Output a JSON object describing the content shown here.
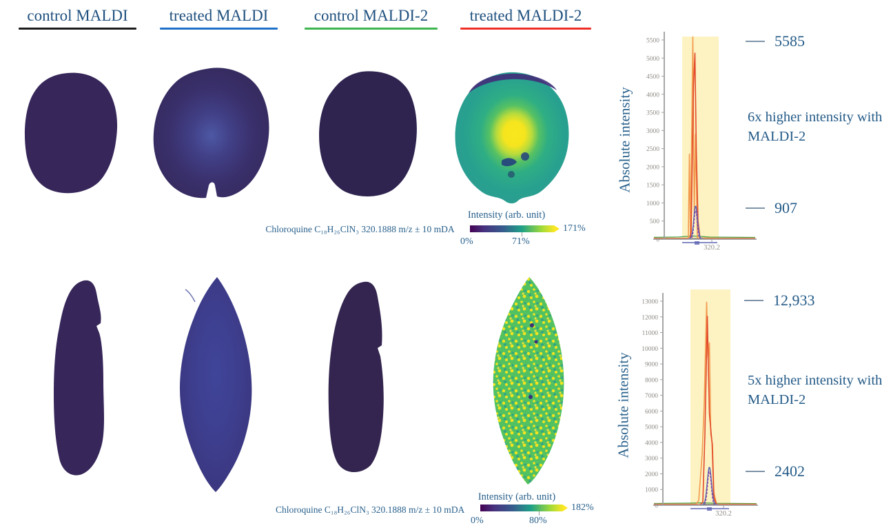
{
  "figure": {
    "columns": [
      {
        "label": "control MALDI",
        "underline_color": "#1c1c1c"
      },
      {
        "label": "treated MALDI",
        "underline_color": "#1e70c8"
      },
      {
        "label": "control MALDI-2",
        "underline_color": "#3cb54e"
      },
      {
        "label": "treated MALDI-2",
        "underline_color": "#ee2e26"
      }
    ],
    "rows": [
      {
        "compound_label": "Chloroquine C₁₈H₂₆ClN₃ 320.1888 m/z ± 10 mDA",
        "colorbar": {
          "title": "Intensity (arb. unit)",
          "min_label": "0%",
          "mid_label": "71%",
          "max_label": "171%"
        }
      },
      {
        "compound_label": "Chloroquine C₁₈H₂₆ClN₃ 320.1888 m/z ± 10 mDA",
        "colorbar": {
          "title": "Intensity (arb. unit)",
          "min_label": "0%",
          "mid_label": "80%",
          "max_label": "182%"
        }
      }
    ]
  },
  "chart_data": [
    {
      "type": "line",
      "title": "",
      "xlabel": "",
      "ylabel": "Absolute intensity",
      "xtick_label": "320.2",
      "ylim": [
        0,
        5750
      ],
      "yticks": [
        0,
        500,
        1000,
        1500,
        2000,
        2500,
        3000,
        3500,
        4000,
        4500,
        5000,
        5500
      ],
      "grid": false,
      "legend": "none",
      "highlight_band": {
        "meaning": "m/z window 320.1888 ± 10 mDA",
        "color": "#fcf2c2"
      },
      "series": [
        {
          "name": "treated MALDI-2",
          "color": "#e2492b",
          "peak_mz": "320.2",
          "peak_intensity": 5585
        },
        {
          "name": "treated MALDI",
          "color": "#5c63b2",
          "peak_mz": "320.2",
          "peak_intensity": 907
        },
        {
          "name": "control MALDI-2",
          "color": "#3da044",
          "peak_mz": "320.2",
          "peak_intensity": 0
        },
        {
          "name": "control MALDI",
          "color": "#3a3a3a",
          "peak_mz": "320.2",
          "peak_intensity": 0
        }
      ],
      "annotations": {
        "high": "5585",
        "low": "907",
        "note": "6x higher intensity with MALDI-2"
      }
    },
    {
      "type": "line",
      "title": "",
      "xlabel": "",
      "ylabel": "Absolute intensity",
      "xtick_label": "320.2",
      "ylim": [
        0,
        13500
      ],
      "yticks": [
        0,
        1000,
        2000,
        3000,
        4000,
        5000,
        6000,
        7000,
        8000,
        9000,
        10000,
        11000,
        12000,
        13000
      ],
      "grid": false,
      "legend": "none",
      "highlight_band": {
        "meaning": "m/z window 320.1888 ± 10 mDA",
        "color": "#fcf2c2"
      },
      "series": [
        {
          "name": "treated MALDI-2",
          "color": "#e2492b",
          "peak_mz": "320.2",
          "peak_intensity": 12933
        },
        {
          "name": "treated MALDI",
          "color": "#5c63b2",
          "peak_mz": "320.2",
          "peak_intensity": 2402
        },
        {
          "name": "control MALDI-2",
          "color": "#3da044",
          "peak_mz": "320.2",
          "peak_intensity": 0
        },
        {
          "name": "control MALDI",
          "color": "#3a3a3a",
          "peak_mz": "320.2",
          "peak_intensity": 0
        }
      ],
      "annotations": {
        "high": "12,933",
        "low": "2402",
        "note": "5x higher intensity with MALDI-2"
      }
    }
  ]
}
